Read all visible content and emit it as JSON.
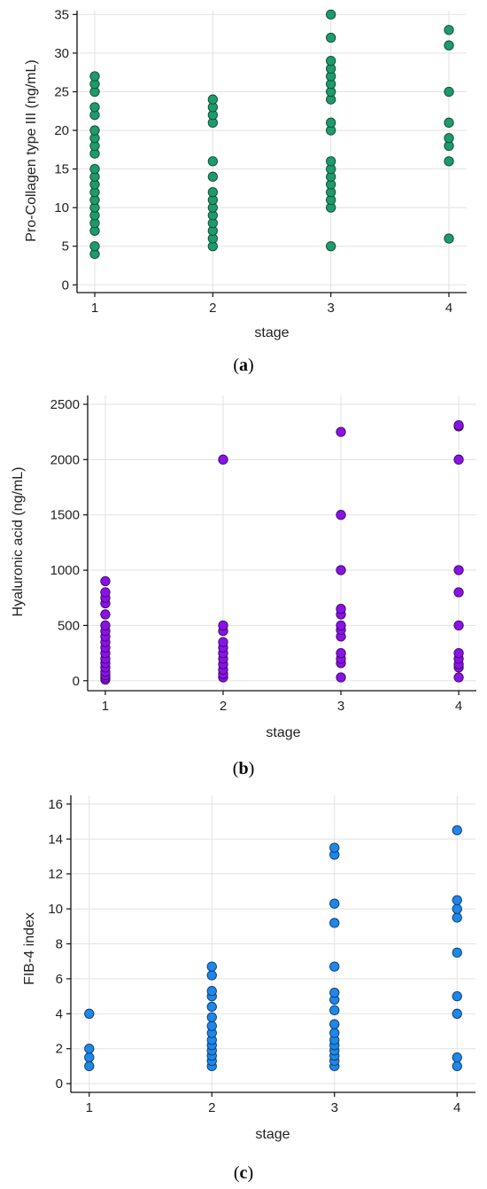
{
  "chart_data": [
    {
      "type": "scatter",
      "panel_label": "a",
      "xlabel": "stage",
      "ylabel": "Pro-Collagen type III (ng/mL)",
      "xlim": [
        0.85,
        4.15
      ],
      "ylim": [
        -1,
        35.5
      ],
      "xticks": [
        "1",
        "2",
        "3",
        "4"
      ],
      "yticks": [
        "0",
        "5",
        "10",
        "15",
        "20",
        "25",
        "30",
        "35"
      ],
      "grid": true,
      "color": "#1e9a6c",
      "stroke": "#0c4a33",
      "points": [
        {
          "x": 1,
          "y": 4
        },
        {
          "x": 1,
          "y": 5
        },
        {
          "x": 1,
          "y": 7
        },
        {
          "x": 1,
          "y": 8
        },
        {
          "x": 1,
          "y": 9
        },
        {
          "x": 1,
          "y": 10
        },
        {
          "x": 1,
          "y": 11
        },
        {
          "x": 1,
          "y": 12
        },
        {
          "x": 1,
          "y": 13
        },
        {
          "x": 1,
          "y": 14
        },
        {
          "x": 1,
          "y": 15
        },
        {
          "x": 1,
          "y": 17
        },
        {
          "x": 1,
          "y": 18
        },
        {
          "x": 1,
          "y": 19
        },
        {
          "x": 1,
          "y": 20
        },
        {
          "x": 1,
          "y": 22
        },
        {
          "x": 1,
          "y": 23
        },
        {
          "x": 1,
          "y": 25
        },
        {
          "x": 1,
          "y": 26
        },
        {
          "x": 1,
          "y": 27
        },
        {
          "x": 2,
          "y": 5
        },
        {
          "x": 2,
          "y": 6
        },
        {
          "x": 2,
          "y": 7
        },
        {
          "x": 2,
          "y": 8
        },
        {
          "x": 2,
          "y": 9
        },
        {
          "x": 2,
          "y": 10
        },
        {
          "x": 2,
          "y": 11
        },
        {
          "x": 2,
          "y": 12
        },
        {
          "x": 2,
          "y": 14
        },
        {
          "x": 2,
          "y": 16
        },
        {
          "x": 2,
          "y": 21
        },
        {
          "x": 2,
          "y": 22
        },
        {
          "x": 2,
          "y": 23
        },
        {
          "x": 2,
          "y": 24
        },
        {
          "x": 3,
          "y": 5
        },
        {
          "x": 3,
          "y": 10
        },
        {
          "x": 3,
          "y": 11
        },
        {
          "x": 3,
          "y": 12
        },
        {
          "x": 3,
          "y": 13
        },
        {
          "x": 3,
          "y": 14
        },
        {
          "x": 3,
          "y": 15
        },
        {
          "x": 3,
          "y": 16
        },
        {
          "x": 3,
          "y": 20
        },
        {
          "x": 3,
          "y": 21
        },
        {
          "x": 3,
          "y": 24
        },
        {
          "x": 3,
          "y": 25
        },
        {
          "x": 3,
          "y": 26
        },
        {
          "x": 3,
          "y": 27
        },
        {
          "x": 3,
          "y": 28
        },
        {
          "x": 3,
          "y": 29
        },
        {
          "x": 3,
          "y": 32
        },
        {
          "x": 3,
          "y": 35
        },
        {
          "x": 4,
          "y": 6
        },
        {
          "x": 4,
          "y": 16
        },
        {
          "x": 4,
          "y": 18
        },
        {
          "x": 4,
          "y": 19
        },
        {
          "x": 4,
          "y": 21
        },
        {
          "x": 4,
          "y": 25
        },
        {
          "x": 4,
          "y": 31
        },
        {
          "x": 4,
          "y": 33
        }
      ]
    },
    {
      "type": "scatter",
      "panel_label": "b",
      "xlabel": "stage",
      "ylabel": "Hyaluronic acid (ng/mL)",
      "xlim": [
        0.85,
        4.15
      ],
      "ylim": [
        -90,
        2580
      ],
      "xticks": [
        "1",
        "2",
        "3",
        "4"
      ],
      "yticks": [
        "0",
        "500",
        "1000",
        "1500",
        "2000",
        "2500"
      ],
      "grid": true,
      "color": "#8a12e6",
      "stroke": "#3d0a66",
      "points": [
        {
          "x": 1,
          "y": 10
        },
        {
          "x": 1,
          "y": 30
        },
        {
          "x": 1,
          "y": 50
        },
        {
          "x": 1,
          "y": 80
        },
        {
          "x": 1,
          "y": 120
        },
        {
          "x": 1,
          "y": 160
        },
        {
          "x": 1,
          "y": 200
        },
        {
          "x": 1,
          "y": 250
        },
        {
          "x": 1,
          "y": 300
        },
        {
          "x": 1,
          "y": 350
        },
        {
          "x": 1,
          "y": 400
        },
        {
          "x": 1,
          "y": 450
        },
        {
          "x": 1,
          "y": 500
        },
        {
          "x": 1,
          "y": 600
        },
        {
          "x": 1,
          "y": 700
        },
        {
          "x": 1,
          "y": 750
        },
        {
          "x": 1,
          "y": 800
        },
        {
          "x": 1,
          "y": 900
        },
        {
          "x": 2,
          "y": 30
        },
        {
          "x": 2,
          "y": 60
        },
        {
          "x": 2,
          "y": 100
        },
        {
          "x": 2,
          "y": 150
        },
        {
          "x": 2,
          "y": 200
        },
        {
          "x": 2,
          "y": 250
        },
        {
          "x": 2,
          "y": 300
        },
        {
          "x": 2,
          "y": 350
        },
        {
          "x": 2,
          "y": 450
        },
        {
          "x": 2,
          "y": 500
        },
        {
          "x": 2,
          "y": 2000
        },
        {
          "x": 3,
          "y": 30
        },
        {
          "x": 3,
          "y": 160
        },
        {
          "x": 3,
          "y": 200
        },
        {
          "x": 3,
          "y": 250
        },
        {
          "x": 3,
          "y": 400
        },
        {
          "x": 3,
          "y": 460
        },
        {
          "x": 3,
          "y": 500
        },
        {
          "x": 3,
          "y": 600
        },
        {
          "x": 3,
          "y": 650
        },
        {
          "x": 3,
          "y": 1000
        },
        {
          "x": 3,
          "y": 1500
        },
        {
          "x": 3,
          "y": 2250
        },
        {
          "x": 4,
          "y": 30
        },
        {
          "x": 4,
          "y": 120
        },
        {
          "x": 4,
          "y": 150
        },
        {
          "x": 4,
          "y": 200
        },
        {
          "x": 4,
          "y": 250
        },
        {
          "x": 4,
          "y": 500
        },
        {
          "x": 4,
          "y": 800
        },
        {
          "x": 4,
          "y": 1000
        },
        {
          "x": 4,
          "y": 2000
        },
        {
          "x": 4,
          "y": 2300
        },
        {
          "x": 4,
          "y": 2310
        }
      ]
    },
    {
      "type": "scatter",
      "panel_label": "c",
      "xlabel": "stage",
      "ylabel": "FIB-4 index",
      "xlim": [
        0.85,
        4.15
      ],
      "ylim": [
        -0.5,
        16.5
      ],
      "xticks": [
        "1",
        "2",
        "3",
        "4"
      ],
      "yticks": [
        "0",
        "2",
        "4",
        "6",
        "8",
        "10",
        "12",
        "14",
        "16"
      ],
      "grid": true,
      "color": "#1f86ea",
      "stroke": "#0b3b66",
      "points": [
        {
          "x": 1,
          "y": 1
        },
        {
          "x": 1,
          "y": 1.5
        },
        {
          "x": 1,
          "y": 2
        },
        {
          "x": 1,
          "y": 4
        },
        {
          "x": 2,
          "y": 1
        },
        {
          "x": 2,
          "y": 1.3
        },
        {
          "x": 2,
          "y": 1.6
        },
        {
          "x": 2,
          "y": 1.9
        },
        {
          "x": 2,
          "y": 2.2
        },
        {
          "x": 2,
          "y": 2.5
        },
        {
          "x": 2,
          "y": 2.9
        },
        {
          "x": 2,
          "y": 3.3
        },
        {
          "x": 2,
          "y": 3.8
        },
        {
          "x": 2,
          "y": 4.4
        },
        {
          "x": 2,
          "y": 5
        },
        {
          "x": 2,
          "y": 5.3
        },
        {
          "x": 2,
          "y": 6.2
        },
        {
          "x": 2,
          "y": 6.7
        },
        {
          "x": 3,
          "y": 1
        },
        {
          "x": 3,
          "y": 1.3
        },
        {
          "x": 3,
          "y": 1.6
        },
        {
          "x": 3,
          "y": 1.9
        },
        {
          "x": 3,
          "y": 2.2
        },
        {
          "x": 3,
          "y": 2.5
        },
        {
          "x": 3,
          "y": 2.9
        },
        {
          "x": 3,
          "y": 3.4
        },
        {
          "x": 3,
          "y": 4.2
        },
        {
          "x": 3,
          "y": 4.8
        },
        {
          "x": 3,
          "y": 5.2
        },
        {
          "x": 3,
          "y": 6.7
        },
        {
          "x": 3,
          "y": 9.2
        },
        {
          "x": 3,
          "y": 10.3
        },
        {
          "x": 3,
          "y": 13.1
        },
        {
          "x": 3,
          "y": 13.5
        },
        {
          "x": 4,
          "y": 1
        },
        {
          "x": 4,
          "y": 1.5
        },
        {
          "x": 4,
          "y": 4
        },
        {
          "x": 4,
          "y": 5
        },
        {
          "x": 4,
          "y": 7.5
        },
        {
          "x": 4,
          "y": 9.5
        },
        {
          "x": 4,
          "y": 10
        },
        {
          "x": 4,
          "y": 10.5
        },
        {
          "x": 4,
          "y": 14.5
        }
      ]
    }
  ]
}
